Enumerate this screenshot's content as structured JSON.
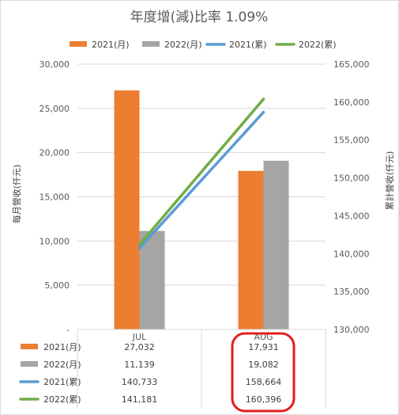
{
  "chart_data": {
    "type": "bar",
    "title": "年度增(減)比率 1.09%",
    "categories": [
      "JUL",
      "AUG"
    ],
    "ylabel": "每月營收(仟元)",
    "y2label": "累計營收(仟元)",
    "ylim": [
      0,
      30000
    ],
    "y_ticks": [
      "30,000",
      "25,000",
      "20,000",
      "15,000",
      "10,000",
      "5,000",
      "-"
    ],
    "y_tick_values": [
      30000,
      25000,
      20000,
      15000,
      10000,
      5000,
      0
    ],
    "y2lim": [
      130000,
      165000
    ],
    "y2_ticks": [
      "165,000",
      "160,000",
      "155,000",
      "150,000",
      "145,000",
      "140,000",
      "135,000",
      "130,000"
    ],
    "y2_tick_values": [
      165000,
      160000,
      155000,
      150000,
      145000,
      140000,
      135000,
      130000
    ],
    "grid": true,
    "legend_position": "top",
    "series": [
      {
        "name": "2021(月)",
        "type": "bar",
        "axis": "left",
        "color": "#ed7d31",
        "values": [
          27032,
          17931
        ],
        "labels": [
          "27,032",
          "17,931"
        ]
      },
      {
        "name": "2022(月)",
        "type": "bar",
        "axis": "left",
        "color": "#a5a5a5",
        "values": [
          11139,
          19082
        ],
        "labels": [
          "11,139",
          "19,082"
        ]
      },
      {
        "name": "2021(累)",
        "type": "line",
        "axis": "right",
        "color": "#5b9bd5",
        "values": [
          140733,
          158664
        ],
        "labels": [
          "140,733",
          "158,664"
        ]
      },
      {
        "name": "2022(累)",
        "type": "line",
        "axis": "right",
        "color": "#70ad47",
        "values": [
          141181,
          160396
        ],
        "labels": [
          "141,181",
          "160,396"
        ]
      }
    ],
    "annotation": {
      "type": "highlight-circle",
      "target_category": "AUG",
      "color": "#e0201b"
    }
  }
}
